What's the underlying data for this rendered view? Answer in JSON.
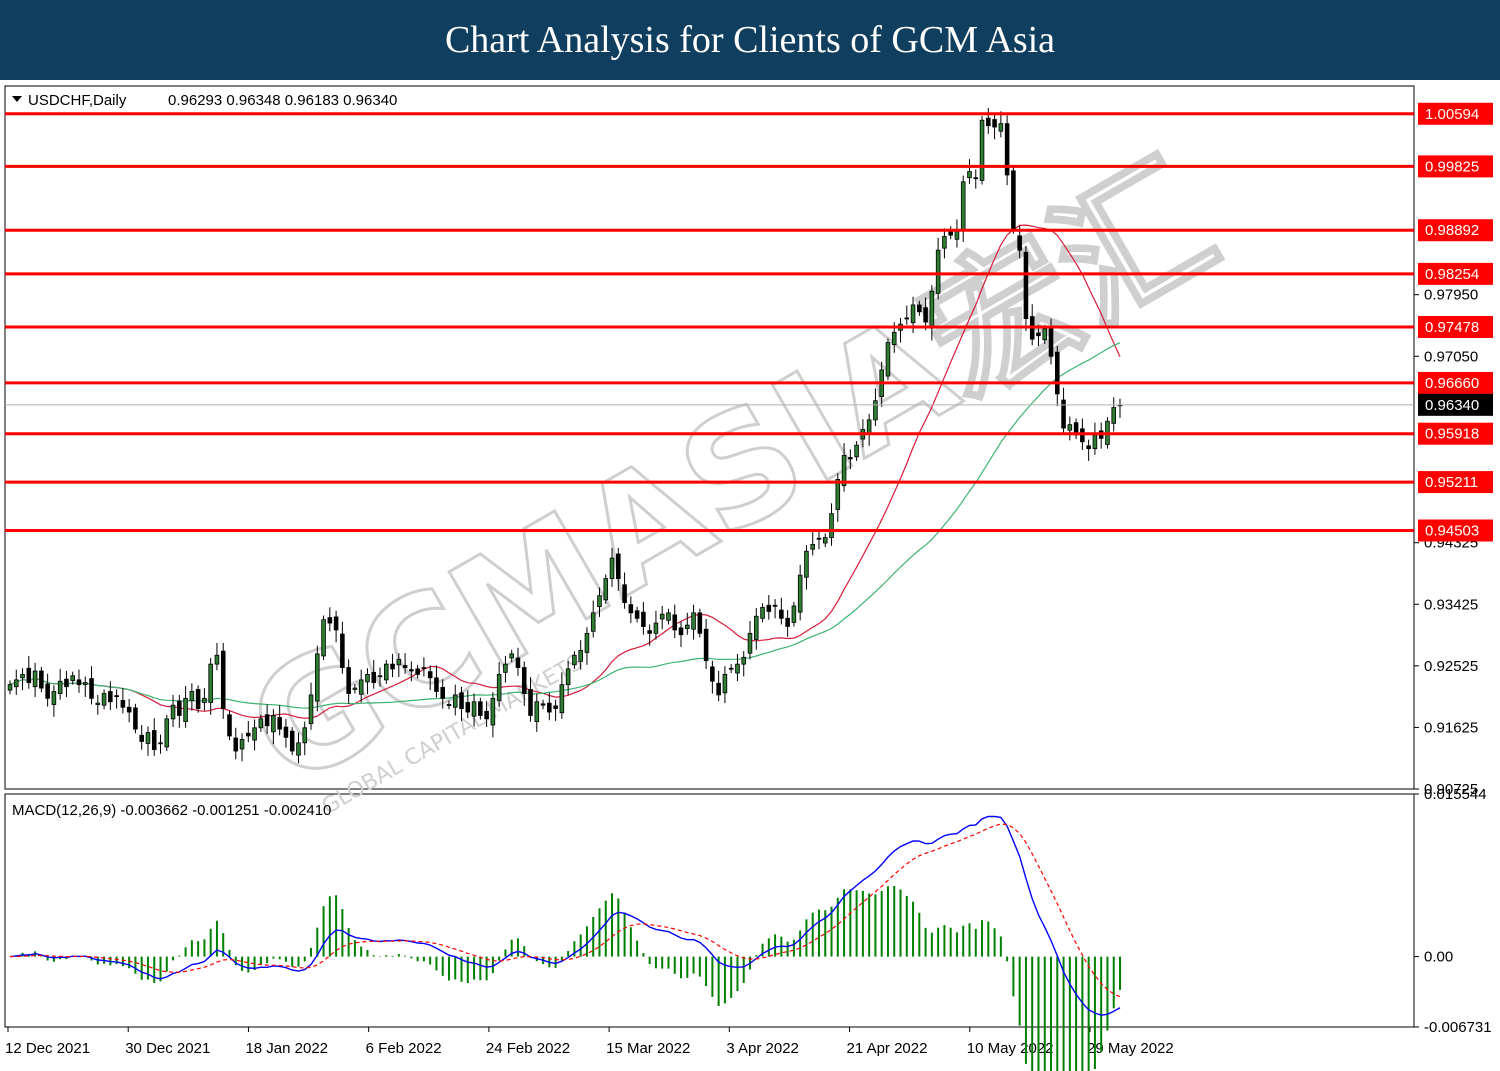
{
  "banner": {
    "title": "Chart Analysis for Clients of GCM Asia",
    "bg_color": "#0f3e5e"
  },
  "header": {
    "symbol": "USDCHF,Daily",
    "ohlc": "0.96293 0.96348 0.96183 0.96340"
  },
  "watermark": {
    "text": "GCMASIA宏汇",
    "subtext": "GLOBAL CAPITAL MARKETS"
  },
  "chart_data": [
    {
      "type": "candlestick",
      "symbol": "USDCHF",
      "timeframe": "Daily",
      "ylim": [
        0.90725,
        1.01
      ],
      "y_ticks": [
        "0.97950",
        "0.97050",
        "0.94325",
        "0.93425",
        "0.92525",
        "0.91625",
        "0.90725"
      ],
      "x_ticks": [
        "12 Dec 2021",
        "30 Dec 2021",
        "18 Jan 2022",
        "6 Feb 2022",
        "24 Feb 2022",
        "15 Mar 2022",
        "3 Apr 2022",
        "21 Apr 2022",
        "10 May 2022",
        "29 May 2022"
      ],
      "current_price": "0.96340",
      "levels": [
        {
          "value": 1.00594,
          "label": "1.00594"
        },
        {
          "value": 0.99825,
          "label": "0.99825"
        },
        {
          "value": 0.98892,
          "label": "0.98892"
        },
        {
          "value": 0.98254,
          "label": "0.98254"
        },
        {
          "value": 0.97478,
          "label": "0.97478"
        },
        {
          "value": 0.9666,
          "label": "0.96660"
        },
        {
          "value": 0.95918,
          "label": "0.95918"
        },
        {
          "value": 0.95211,
          "label": "0.95211"
        },
        {
          "value": 0.94503,
          "label": "0.94503"
        }
      ],
      "close_series": [
        0.9225,
        0.9232,
        0.924,
        0.9228,
        0.9245,
        0.922,
        0.9205,
        0.9215,
        0.923,
        0.9222,
        0.9238,
        0.9225,
        0.9228,
        0.9205,
        0.9198,
        0.9212,
        0.92,
        0.9208,
        0.9192,
        0.9185,
        0.916,
        0.9142,
        0.9155,
        0.913,
        0.914,
        0.9175,
        0.9195,
        0.918,
        0.9205,
        0.9215,
        0.919,
        0.9205,
        0.9255,
        0.9268,
        0.919,
        0.915,
        0.9128,
        0.9145,
        0.915,
        0.9162,
        0.9175,
        0.9165,
        0.918,
        0.916,
        0.9148,
        0.9128,
        0.914,
        0.9162,
        0.921,
        0.927,
        0.932,
        0.9315,
        0.9305,
        0.925,
        0.9212,
        0.922,
        0.9232,
        0.924,
        0.9228,
        0.9238,
        0.9255,
        0.9248,
        0.9262,
        0.925,
        0.9245,
        0.924,
        0.925,
        0.9235,
        0.9215,
        0.9205,
        0.9195,
        0.921,
        0.919,
        0.9185,
        0.92,
        0.918,
        0.9175,
        0.9205,
        0.924,
        0.9255,
        0.927,
        0.925,
        0.9212,
        0.918,
        0.92,
        0.9195,
        0.9185,
        0.919,
        0.9225,
        0.9248,
        0.9268,
        0.9275,
        0.93,
        0.933,
        0.9355,
        0.938,
        0.941,
        0.938,
        0.9345,
        0.933,
        0.9322,
        0.931,
        0.93,
        0.9315,
        0.9328,
        0.933,
        0.9305,
        0.9298,
        0.9312,
        0.933,
        0.93,
        0.926,
        0.923,
        0.921,
        0.924,
        0.9248,
        0.9255,
        0.9265,
        0.93,
        0.9325,
        0.9338,
        0.9332,
        0.934,
        0.9322,
        0.931,
        0.934,
        0.9385,
        0.942,
        0.943,
        0.9438,
        0.944,
        0.9475,
        0.9525,
        0.956,
        0.9555,
        0.9575,
        0.9598,
        0.9612,
        0.964,
        0.9685,
        0.9725,
        0.974,
        0.9752,
        0.976,
        0.978,
        0.977,
        0.9755,
        0.98,
        0.986,
        0.988,
        0.9882,
        0.989,
        0.996,
        0.9975,
        0.9965,
        1.005,
        1.0042,
        1.004,
        1.0045,
        0.997,
        0.989,
        0.986,
        0.976,
        0.973,
        0.9735,
        0.9745,
        0.9705,
        0.965,
        0.96,
        0.9605,
        0.959,
        0.958,
        0.957,
        0.959,
        0.9585,
        0.961,
        0.963,
        0.9634
      ],
      "ma_fast": {
        "color": "#d81b3a"
      },
      "ma_slow": {
        "color": "#3cb371"
      }
    },
    {
      "type": "macd",
      "label": "MACD(12,26,9) -0.003662 -0.001251 -0.002410",
      "params": [
        12,
        26,
        9
      ],
      "ylim": [
        -0.006731,
        0.015544
      ],
      "y_ticks": [
        "0.015544",
        "0.00",
        "-0.006731"
      ],
      "macd_color": "#0000ff",
      "signal_color": "#ff0000",
      "histogram_color": "#008000"
    }
  ]
}
